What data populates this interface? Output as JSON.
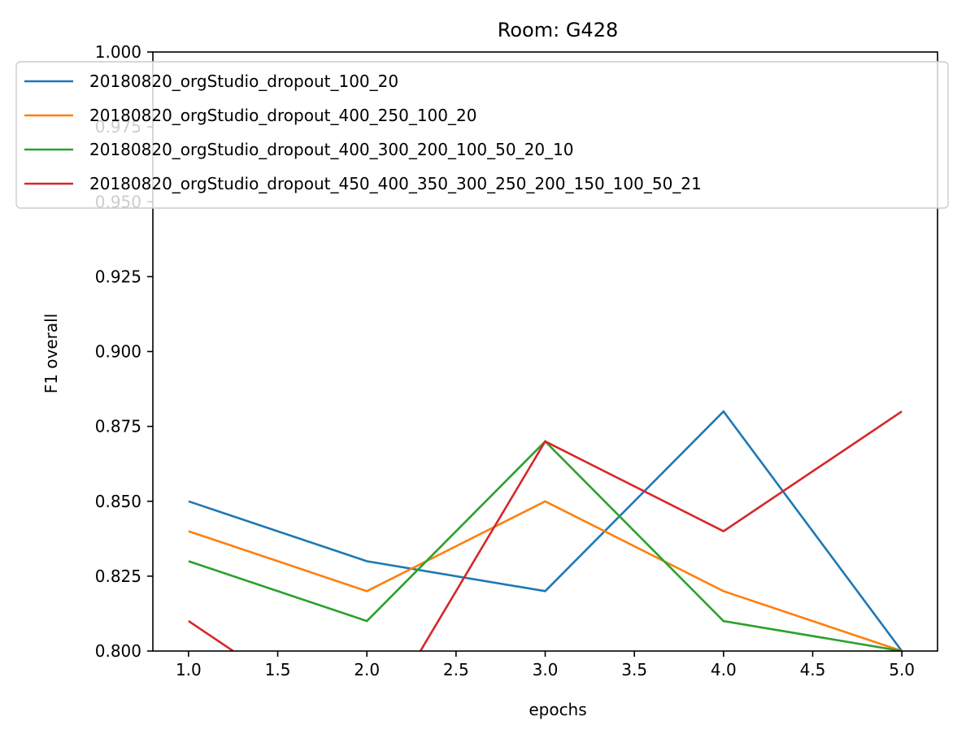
{
  "chart_data": {
    "type": "line",
    "title": "Room: G428",
    "xlabel": "epochs",
    "ylabel": "F1 overall",
    "x": [
      1.0,
      2.0,
      3.0,
      4.0,
      5.0
    ],
    "xlim": [
      0.8,
      5.2
    ],
    "ylim": [
      0.8,
      1.0
    ],
    "xticks": [
      "1.0",
      "1.5",
      "2.0",
      "2.5",
      "3.0",
      "3.5",
      "4.0",
      "4.5",
      "5.0"
    ],
    "yticks": [
      "0.800",
      "0.825",
      "0.850",
      "0.875",
      "0.900",
      "0.925",
      "0.950",
      "0.975",
      "1.000"
    ],
    "grid": false,
    "legend_position": "upper-left",
    "series": [
      {
        "name": "20180820_orgStudio_dropout_100_20",
        "color": "#1f77b4",
        "values": [
          0.85,
          0.83,
          0.82,
          0.88,
          0.8
        ]
      },
      {
        "name": "20180820_orgStudio_dropout_400_250_100_20",
        "color": "#ff7f0e",
        "values": [
          0.84,
          0.82,
          0.85,
          0.82,
          0.8
        ]
      },
      {
        "name": "20180820_orgStudio_dropout_400_300_200_100_50_20_10",
        "color": "#2ca02c",
        "values": [
          0.83,
          0.81,
          0.87,
          0.81,
          0.8
        ]
      },
      {
        "name": "20180820_orgStudio_dropout_450_400_350_300_250_200_150_100_50_21",
        "color": "#d62728",
        "values": [
          0.81,
          0.77,
          0.87,
          0.84,
          0.88
        ]
      }
    ]
  }
}
